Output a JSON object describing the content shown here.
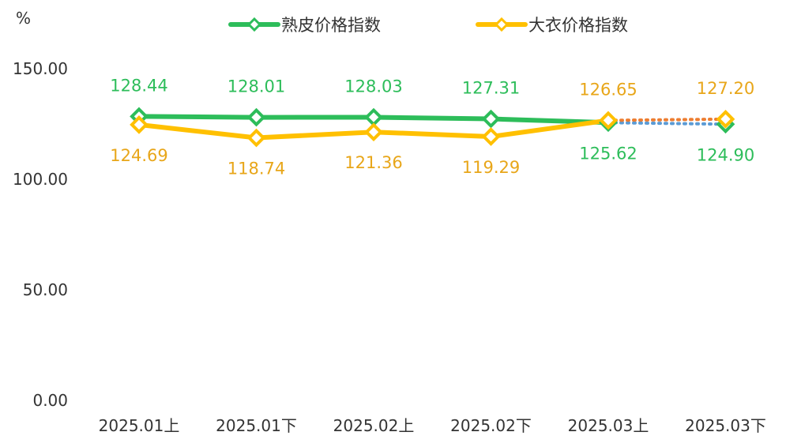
{
  "chart_data": {
    "type": "line",
    "ylabel": "%",
    "ylim": [
      0,
      150
    ],
    "y_ticks": [
      "0.00",
      "50.00",
      "100.00",
      "150.00"
    ],
    "categories": [
      "2025.01上",
      "2025.01下",
      "2025.02上",
      "2025.02下",
      "2025.03上",
      "2025.03下"
    ],
    "grid": false,
    "legend_position": "top",
    "series": [
      {
        "name": "熟皮价格指数",
        "color": "#2dbd5a",
        "values": [
          128.44,
          128.01,
          128.03,
          127.31,
          125.62,
          124.9
        ],
        "labels": [
          "128.44",
          "128.01",
          "128.03",
          "127.31",
          "125.62",
          "124.90"
        ],
        "projected_segment_color": "#5b9bd5"
      },
      {
        "name": "大衣价格指数",
        "color": "#ffc000",
        "label_color": "#e8a619",
        "values": [
          124.69,
          118.74,
          121.36,
          119.29,
          126.65,
          127.2
        ],
        "labels": [
          "124.69",
          "118.74",
          "121.36",
          "119.29",
          "126.65",
          "127.20"
        ],
        "projected_segment_color": "#ed7d31"
      }
    ]
  }
}
